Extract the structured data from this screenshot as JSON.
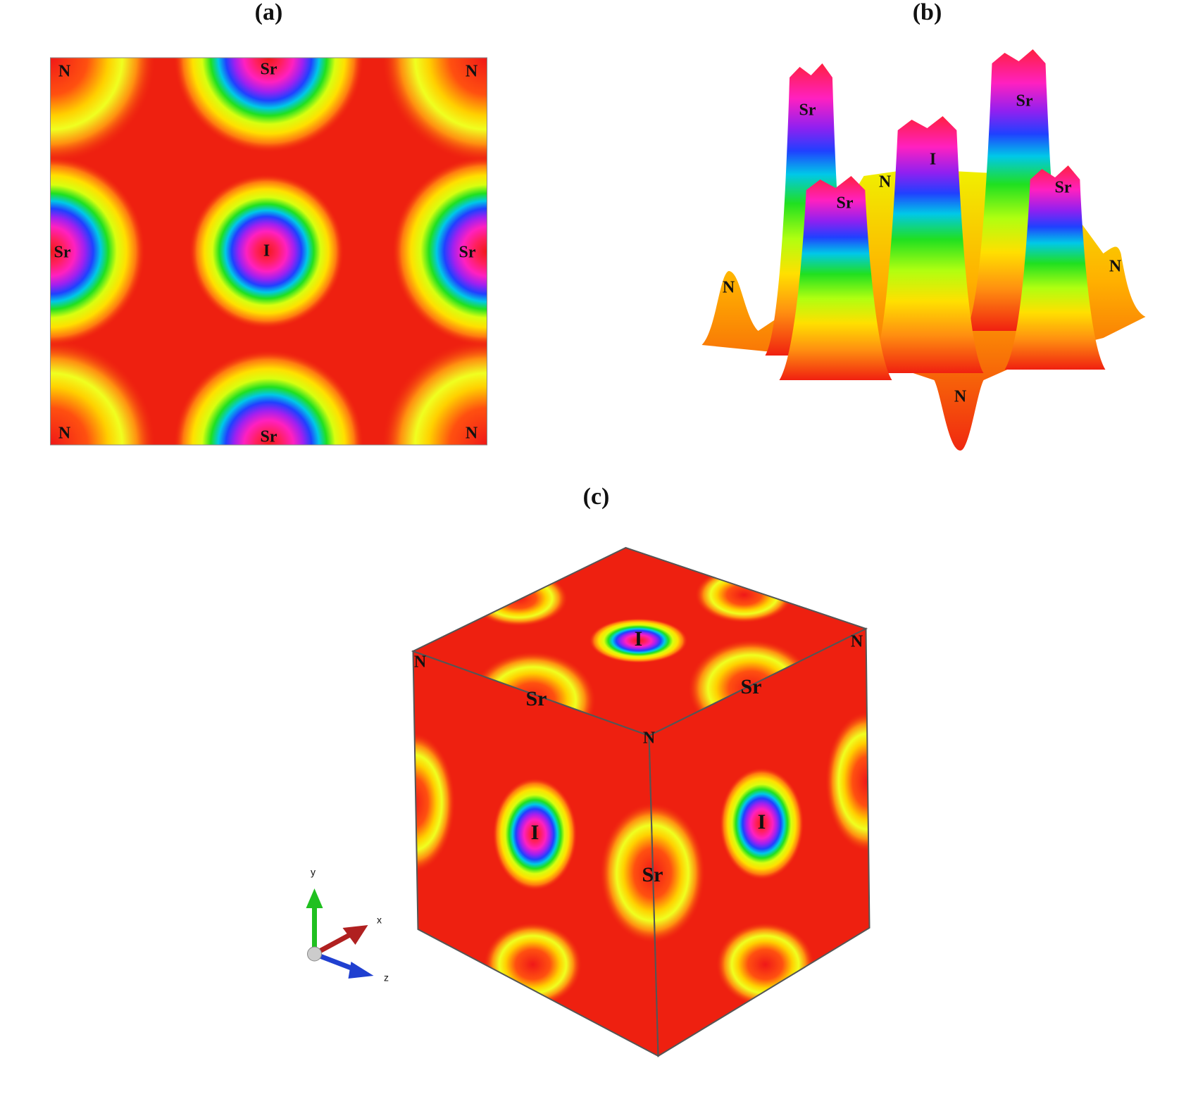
{
  "panels": [
    {
      "label": "(a)",
      "atoms": [
        "N",
        "Sr",
        "N",
        "Sr",
        "I",
        "Sr",
        "N",
        "Sr",
        "N"
      ]
    },
    {
      "label": "(b)",
      "atoms": [
        "Sr",
        "Sr",
        "I",
        "N",
        "Sr",
        "Sr",
        "N",
        "N",
        "N"
      ]
    },
    {
      "label": "(c)",
      "atoms": [
        "I",
        "N",
        "N",
        "Sr",
        "Sr",
        "N",
        "I",
        "I",
        "Sr"
      ],
      "axes": [
        "y",
        "x",
        "z"
      ]
    }
  ]
}
